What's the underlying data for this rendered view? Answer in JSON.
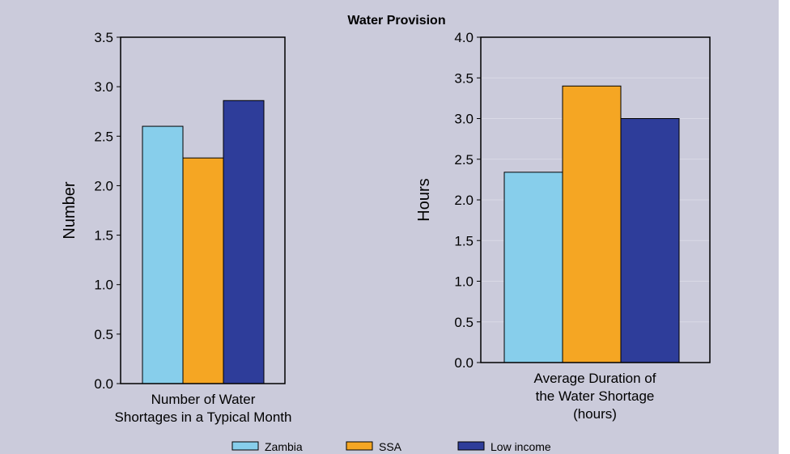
{
  "title": "Water Provision",
  "colors": {
    "background": "#cbcbdb",
    "zambia": "#87ceeb",
    "ssa": "#f5a623",
    "low_income": "#2e3d9a",
    "axis": "#000000"
  },
  "legend": {
    "items": [
      {
        "label": "Zambia",
        "color": "#87ceeb"
      },
      {
        "label": "SSA",
        "color": "#f5a623"
      },
      {
        "label": "Low income",
        "color": "#2e3d9a"
      }
    ]
  },
  "chart_data": [
    {
      "type": "bar",
      "title": "",
      "xlabel": [
        "Number of Water",
        "Shortages in a Typical Month"
      ],
      "ylabel": "Number",
      "ylim": [
        0,
        3.5
      ],
      "yticks": [
        "0.0",
        "0.5",
        "1.0",
        "1.5",
        "2.0",
        "2.5",
        "3.0",
        "3.5"
      ],
      "grid": false,
      "series": [
        {
          "name": "Zambia",
          "values": [
            2.6
          ]
        },
        {
          "name": "SSA",
          "values": [
            2.28
          ]
        },
        {
          "name": "Low income",
          "values": [
            2.86
          ]
        }
      ]
    },
    {
      "type": "bar",
      "title": "",
      "xlabel": [
        "Average Duration of",
        "the Water Shortage",
        "(hours)"
      ],
      "ylabel": "Hours",
      "ylim": [
        0,
        4.0
      ],
      "yticks": [
        "0.0",
        "0.5",
        "1.0",
        "1.5",
        "2.0",
        "2.5",
        "3.0",
        "3.5",
        "4.0"
      ],
      "grid": true,
      "series": [
        {
          "name": "Zambia",
          "values": [
            2.34
          ]
        },
        {
          "name": "SSA",
          "values": [
            3.4
          ]
        },
        {
          "name": "Low income",
          "values": [
            3.0
          ]
        }
      ]
    }
  ]
}
